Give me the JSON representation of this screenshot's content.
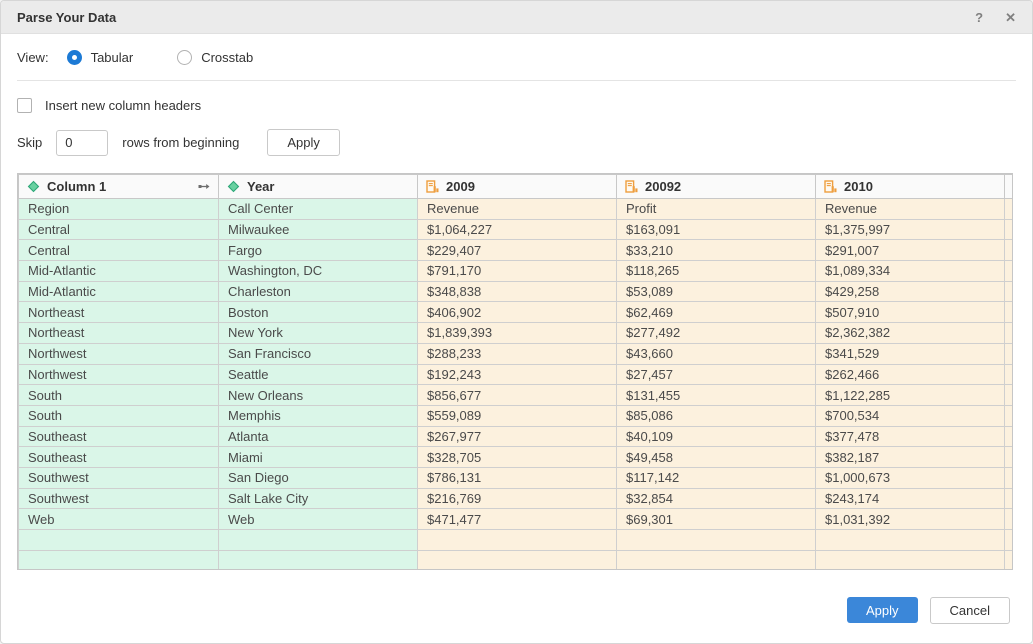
{
  "dialog": {
    "title": "Parse Your Data",
    "help_icon": "?",
    "close_icon": "✕"
  },
  "view": {
    "label": "View:",
    "options": [
      {
        "label": "Tabular",
        "selected": true
      },
      {
        "label": "Crosstab",
        "selected": false
      }
    ]
  },
  "options": {
    "insert_headers_label": "Insert new column headers",
    "insert_headers_checked": false,
    "skip_label": "Skip",
    "skip_value": "0",
    "skip_suffix": "rows from beginning",
    "skip_apply_label": "Apply"
  },
  "table": {
    "columns": [
      {
        "label": "Column 1",
        "type": "dimension",
        "icon": "dimension-icon",
        "has_move_icon": true
      },
      {
        "label": "Year",
        "type": "dimension",
        "icon": "dimension-icon",
        "has_move_icon": false
      },
      {
        "label": "2009",
        "type": "measure",
        "icon": "measure-icon",
        "has_move_icon": false
      },
      {
        "label": "20092",
        "type": "measure",
        "icon": "measure-icon",
        "has_move_icon": false
      },
      {
        "label": "2010",
        "type": "measure",
        "icon": "measure-icon",
        "has_move_icon": false
      }
    ],
    "dimension_col_count": 2,
    "rows": [
      [
        "Region",
        "Call Center",
        "Revenue",
        "Profit",
        "Revenue"
      ],
      [
        "Central",
        "Milwaukee",
        "$1,064,227",
        "$163,091",
        "$1,375,997"
      ],
      [
        "Central",
        "Fargo",
        "$229,407",
        "$33,210",
        "$291,007"
      ],
      [
        "Mid-Atlantic",
        "Washington, DC",
        "$791,170",
        "$118,265",
        "$1,089,334"
      ],
      [
        "Mid-Atlantic",
        "Charleston",
        "$348,838",
        "$53,089",
        "$429,258"
      ],
      [
        "Northeast",
        "Boston",
        "$406,902",
        "$62,469",
        "$507,910"
      ],
      [
        "Northeast",
        "New York",
        "$1,839,393",
        "$277,492",
        "$2,362,382"
      ],
      [
        "Northwest",
        "San Francisco",
        "$288,233",
        "$43,660",
        "$341,529"
      ],
      [
        "Northwest",
        "Seattle",
        "$192,243",
        "$27,457",
        "$262,466"
      ],
      [
        "South",
        "New Orleans",
        "$856,677",
        "$131,455",
        "$1,122,285"
      ],
      [
        "South",
        "Memphis",
        "$559,089",
        "$85,086",
        "$700,534"
      ],
      [
        "Southeast",
        "Atlanta",
        "$267,977",
        "$40,109",
        "$377,478"
      ],
      [
        "Southeast",
        "Miami",
        "$328,705",
        "$49,458",
        "$382,187"
      ],
      [
        "Southwest",
        "San Diego",
        "$786,131",
        "$117,142",
        "$1,000,673"
      ],
      [
        "Southwest",
        "Salt Lake City",
        "$216,769",
        "$32,854",
        "$243,174"
      ],
      [
        "Web",
        "Web",
        "$471,477",
        "$69,301",
        "$1,031,392"
      ],
      [
        "",
        "",
        "",
        "",
        ""
      ],
      [
        "",
        "",
        "",
        "",
        ""
      ]
    ]
  },
  "footer": {
    "apply_label": "Apply",
    "cancel_label": "Cancel"
  },
  "colors": {
    "accent_blue": "#3b87d9",
    "dimension_cell_bg": "#daf6e8",
    "measure_cell_bg": "#fcf1de",
    "dimension_icon_green": "#68d1a1",
    "measure_icon_orange": "#ee9e3f",
    "titlebar_bg": "#ebebeb"
  }
}
